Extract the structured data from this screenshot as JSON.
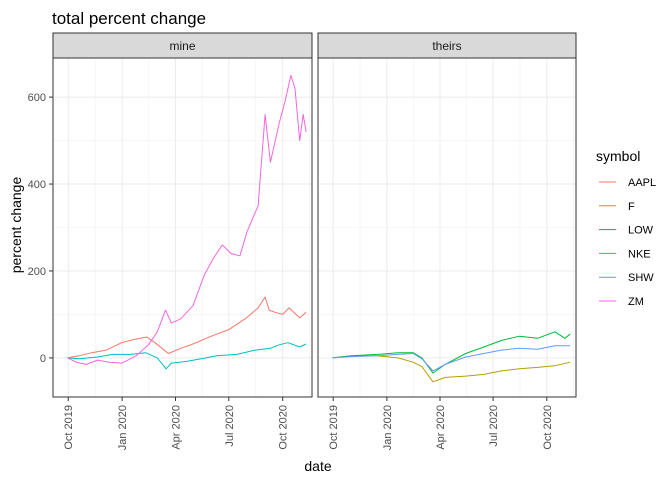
{
  "chart_data": {
    "type": "line",
    "title": "total percent change",
    "xlabel": "date",
    "ylabel": "percent change",
    "x_type": "date",
    "xlim": [
      "2019-09-05",
      "2020-11-20"
    ],
    "x_ticks": [
      {
        "date": "2019-10-01",
        "label": "Oct 2019"
      },
      {
        "date": "2020-01-01",
        "label": "Jan 2020"
      },
      {
        "date": "2020-04-01",
        "label": "Apr 2020"
      },
      {
        "date": "2020-07-01",
        "label": "Jul 2020"
      },
      {
        "date": "2020-10-01",
        "label": "Oct 2020"
      }
    ],
    "ylim": [
      -90,
      690
    ],
    "y_ticks": [
      0,
      200,
      400,
      600
    ],
    "grid": true,
    "legend": {
      "title": "symbol",
      "position": "right"
    },
    "facets": [
      {
        "label": "mine",
        "series": [
          {
            "name": "AAPL",
            "color": "#F8766D",
            "points": [
              [
                "2019-09-30",
                0
              ],
              [
                "2019-10-20",
                5
              ],
              [
                "2019-11-10",
                12
              ],
              [
                "2019-12-05",
                18
              ],
              [
                "2019-12-31",
                35
              ],
              [
                "2020-01-20",
                42
              ],
              [
                "2020-02-12",
                48
              ],
              [
                "2020-02-26",
                35
              ],
              [
                "2020-03-20",
                10
              ],
              [
                "2020-04-10",
                22
              ],
              [
                "2020-05-01",
                32
              ],
              [
                "2020-06-01",
                50
              ],
              [
                "2020-07-01",
                65
              ],
              [
                "2020-07-31",
                92
              ],
              [
                "2020-08-20",
                115
              ],
              [
                "2020-09-01",
                140
              ],
              [
                "2020-09-08",
                110
              ],
              [
                "2020-09-18",
                105
              ],
              [
                "2020-10-01",
                100
              ],
              [
                "2020-10-12",
                115
              ],
              [
                "2020-10-30",
                92
              ],
              [
                "2020-11-10",
                105
              ]
            ]
          },
          {
            "name": "NKE",
            "color": "#00BFC4",
            "points": [
              [
                "2019-09-30",
                0
              ],
              [
                "2019-10-20",
                -2
              ],
              [
                "2019-11-20",
                2
              ],
              [
                "2019-12-15",
                8
              ],
              [
                "2020-01-15",
                8
              ],
              [
                "2020-02-10",
                12
              ],
              [
                "2020-03-01",
                0
              ],
              [
                "2020-03-16",
                -25
              ],
              [
                "2020-03-25",
                -12
              ],
              [
                "2020-04-20",
                -8
              ],
              [
                "2020-05-15",
                -2
              ],
              [
                "2020-06-10",
                5
              ],
              [
                "2020-07-15",
                8
              ],
              [
                "2020-08-15",
                18
              ],
              [
                "2020-09-10",
                22
              ],
              [
                "2020-09-25",
                30
              ],
              [
                "2020-10-10",
                35
              ],
              [
                "2020-10-30",
                25
              ],
              [
                "2020-11-10",
                32
              ]
            ]
          },
          {
            "name": "ZM",
            "color": "#F564E3",
            "points": [
              [
                "2019-09-30",
                0
              ],
              [
                "2019-10-15",
                -10
              ],
              [
                "2019-11-01",
                -15
              ],
              [
                "2019-11-20",
                -5
              ],
              [
                "2019-12-10",
                -10
              ],
              [
                "2020-01-01",
                -12
              ],
              [
                "2020-01-25",
                5
              ],
              [
                "2020-02-15",
                30
              ],
              [
                "2020-03-01",
                60
              ],
              [
                "2020-03-15",
                110
              ],
              [
                "2020-03-25",
                80
              ],
              [
                "2020-04-10",
                90
              ],
              [
                "2020-05-01",
                120
              ],
              [
                "2020-05-20",
                190
              ],
              [
                "2020-06-05",
                230
              ],
              [
                "2020-06-20",
                260
              ],
              [
                "2020-07-05",
                240
              ],
              [
                "2020-07-20",
                235
              ],
              [
                "2020-08-01",
                290
              ],
              [
                "2020-08-20",
                350
              ],
              [
                "2020-09-01",
                560
              ],
              [
                "2020-09-10",
                450
              ],
              [
                "2020-09-25",
                540
              ],
              [
                "2020-10-05",
                590
              ],
              [
                "2020-10-15",
                650
              ],
              [
                "2020-10-22",
                620
              ],
              [
                "2020-10-30",
                500
              ],
              [
                "2020-11-05",
                560
              ],
              [
                "2020-11-10",
                520
              ]
            ]
          }
        ]
      },
      {
        "label": "theirs",
        "series": [
          {
            "name": "F",
            "color": "#B79F00",
            "points": [
              [
                "2019-09-30",
                0
              ],
              [
                "2019-11-01",
                5
              ],
              [
                "2019-12-15",
                5
              ],
              [
                "2020-01-20",
                0
              ],
              [
                "2020-02-15",
                -10
              ],
              [
                "2020-03-01",
                -20
              ],
              [
                "2020-03-20",
                -55
              ],
              [
                "2020-04-10",
                -45
              ],
              [
                "2020-05-15",
                -42
              ],
              [
                "2020-06-15",
                -38
              ],
              [
                "2020-07-15",
                -30
              ],
              [
                "2020-08-15",
                -25
              ],
              [
                "2020-09-15",
                -22
              ],
              [
                "2020-10-15",
                -18
              ],
              [
                "2020-11-10",
                -10
              ]
            ]
          },
          {
            "name": "LOW",
            "color": "#00BA38",
            "points": [
              [
                "2019-09-30",
                0
              ],
              [
                "2019-11-01",
                5
              ],
              [
                "2019-12-15",
                8
              ],
              [
                "2020-01-20",
                12
              ],
              [
                "2020-02-15",
                12
              ],
              [
                "2020-03-01",
                0
              ],
              [
                "2020-03-20",
                -35
              ],
              [
                "2020-04-10",
                -15
              ],
              [
                "2020-05-15",
                10
              ],
              [
                "2020-06-15",
                25
              ],
              [
                "2020-07-15",
                40
              ],
              [
                "2020-08-15",
                50
              ],
              [
                "2020-09-15",
                45
              ],
              [
                "2020-10-15",
                60
              ],
              [
                "2020-11-01",
                45
              ],
              [
                "2020-11-10",
                55
              ]
            ]
          },
          {
            "name": "SHW",
            "color": "#619CFF",
            "points": [
              [
                "2019-09-30",
                0
              ],
              [
                "2019-11-01",
                3
              ],
              [
                "2019-12-15",
                5
              ],
              [
                "2020-01-20",
                8
              ],
              [
                "2020-02-15",
                10
              ],
              [
                "2020-03-01",
                -2
              ],
              [
                "2020-03-20",
                -30
              ],
              [
                "2020-04-10",
                -15
              ],
              [
                "2020-05-15",
                2
              ],
              [
                "2020-06-15",
                10
              ],
              [
                "2020-07-15",
                18
              ],
              [
                "2020-08-15",
                22
              ],
              [
                "2020-09-15",
                20
              ],
              [
                "2020-10-15",
                28
              ],
              [
                "2020-11-10",
                28
              ]
            ]
          }
        ]
      }
    ],
    "legend_order": [
      {
        "name": "AAPL",
        "color": "#F8766D"
      },
      {
        "name": "F",
        "color": "#B79F00"
      },
      {
        "name": "LOW",
        "color": "#00BA38"
      },
      {
        "name": "NKE",
        "color": "#00BFC4"
      },
      {
        "name": "SHW",
        "color": "#619CFF"
      },
      {
        "name": "ZM",
        "color": "#F564E3"
      }
    ]
  }
}
